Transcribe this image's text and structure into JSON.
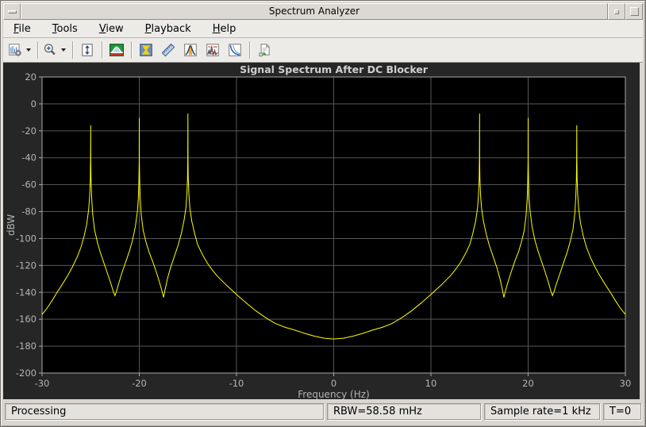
{
  "window": {
    "title": "Spectrum Analyzer"
  },
  "titlebar": {
    "buttons": [
      {
        "name": "window-menu-button",
        "glyph": "dash"
      },
      {
        "name": "minimize-button",
        "glyph": "small-square"
      },
      {
        "name": "maximize-button",
        "glyph": "square"
      }
    ]
  },
  "menubar": {
    "items": [
      {
        "label": "File",
        "mnemonic": "F"
      },
      {
        "label": "Tools",
        "mnemonic": "T"
      },
      {
        "label": "View",
        "mnemonic": "V"
      },
      {
        "label": "Playback",
        "mnemonic": "P"
      },
      {
        "label": "Help",
        "mnemonic": "H"
      }
    ]
  },
  "toolbar": {
    "buttons": [
      {
        "name": "spectrum-settings-button",
        "icon": "settings-chart-icon",
        "dropdown": true
      },
      {
        "name": "zoom-button",
        "icon": "zoom-in-icon",
        "dropdown": true
      },
      {
        "name": "fit-to-view-button",
        "icon": "fit-view-icon",
        "dropdown": false
      },
      {
        "name": "spectrum-spectrogram-button",
        "icon": "spectrum-icon",
        "dropdown": false
      },
      {
        "name": "spectral-mask-button",
        "icon": "spectral-mask-icon",
        "dropdown": false
      },
      {
        "name": "measurements-button",
        "icon": "ruler-icon",
        "dropdown": false
      },
      {
        "name": "peak-finder-button",
        "icon": "peak-finder-icon",
        "dropdown": false
      },
      {
        "name": "distortion-measurements-button",
        "icon": "distortion-icon",
        "dropdown": false
      },
      {
        "name": "ccdf-measurements-button",
        "icon": "ccdf-icon",
        "dropdown": false
      },
      {
        "name": "generate-script-button",
        "icon": "script-icon",
        "dropdown": false
      }
    ],
    "separators_after": [
      0,
      1,
      2,
      3,
      8
    ]
  },
  "statusbar": {
    "processing": "Processing",
    "rbw": "RBW=58.58 mHz",
    "sample_rate": "Sample rate=1 kHz",
    "time": "T=0"
  },
  "chart_data": {
    "type": "line",
    "title": "Signal Spectrum After DC Blocker",
    "xlabel": "Frequency (Hz)",
    "ylabel": "dBW",
    "xlim": [
      -30,
      30
    ],
    "ylim": [
      -200,
      20
    ],
    "xticks": [
      -30,
      -20,
      -10,
      0,
      10,
      20,
      30
    ],
    "yticks": [
      20,
      0,
      -20,
      -40,
      -60,
      -80,
      -100,
      -120,
      -140,
      -160,
      -180,
      -200
    ],
    "grid": true,
    "legend": "none",
    "colors": {
      "panel_bg": "#262626",
      "plot_bg": "#000000",
      "grid": "#565656",
      "axis": "#a8a8a8",
      "tick_label": "#b4b4b4",
      "title": "#cfcfcf",
      "line": "#ffff00"
    },
    "peaks": [
      {
        "freq": -25,
        "dBW": -15.8
      },
      {
        "freq": -20,
        "dBW": -10.4
      },
      {
        "freq": -15,
        "dBW": -7.2
      },
      {
        "freq": 15,
        "dBW": -7.2
      },
      {
        "freq": 20,
        "dBW": -10.4
      },
      {
        "freq": 25,
        "dBW": -15.8
      }
    ],
    "series": [
      {
        "name": "spectrum",
        "points": [
          [
            -30,
            -156.5
          ],
          [
            -29.5,
            -152
          ],
          [
            -29,
            -146.5
          ],
          [
            -28.5,
            -140.5
          ],
          [
            -28,
            -135
          ],
          [
            -27.4,
            -128
          ],
          [
            -26.9,
            -121.5
          ],
          [
            -26.4,
            -114
          ],
          [
            -26,
            -106.5
          ],
          [
            -25.7,
            -99
          ],
          [
            -25.4,
            -89
          ],
          [
            -25.2,
            -78
          ],
          [
            -25.1,
            -68
          ],
          [
            -25.04,
            -56
          ],
          [
            -25.01,
            -42
          ],
          [
            -25,
            -15.8
          ],
          [
            -24.99,
            -42
          ],
          [
            -24.96,
            -56
          ],
          [
            -24.9,
            -69.5
          ],
          [
            -24.8,
            -81.5
          ],
          [
            -24.6,
            -93.5
          ],
          [
            -24.3,
            -103
          ],
          [
            -24,
            -110.5
          ],
          [
            -23.6,
            -119
          ],
          [
            -23.2,
            -127.5
          ],
          [
            -22.9,
            -134
          ],
          [
            -22.65,
            -139.8
          ],
          [
            -22.5,
            -142.5
          ],
          [
            -22.35,
            -139.5
          ],
          [
            -22.1,
            -133
          ],
          [
            -21.8,
            -126
          ],
          [
            -21.4,
            -117.5
          ],
          [
            -21,
            -109
          ],
          [
            -20.7,
            -101.5
          ],
          [
            -20.4,
            -91
          ],
          [
            -20.2,
            -80
          ],
          [
            -20.1,
            -70
          ],
          [
            -20.04,
            -57
          ],
          [
            -20.01,
            -43
          ],
          [
            -20,
            -10.4
          ],
          [
            -19.99,
            -43
          ],
          [
            -19.96,
            -57
          ],
          [
            -19.9,
            -70
          ],
          [
            -19.8,
            -82
          ],
          [
            -19.6,
            -94
          ],
          [
            -19.3,
            -103
          ],
          [
            -19,
            -110
          ],
          [
            -18.6,
            -117.5
          ],
          [
            -18.2,
            -126
          ],
          [
            -17.9,
            -133
          ],
          [
            -17.65,
            -139.5
          ],
          [
            -17.5,
            -143.8
          ],
          [
            -17.35,
            -138
          ],
          [
            -17.1,
            -130
          ],
          [
            -16.8,
            -122
          ],
          [
            -16.4,
            -113.5
          ],
          [
            -16,
            -105
          ],
          [
            -15.7,
            -97
          ],
          [
            -15.4,
            -87
          ],
          [
            -15.2,
            -77
          ],
          [
            -15.1,
            -67
          ],
          [
            -15.04,
            -55
          ],
          [
            -15.01,
            -41
          ],
          [
            -15,
            -7.2
          ],
          [
            -14.99,
            -41
          ],
          [
            -14.96,
            -55
          ],
          [
            -14.9,
            -67
          ],
          [
            -14.8,
            -77
          ],
          [
            -14.6,
            -87
          ],
          [
            -14.3,
            -96.5
          ],
          [
            -14,
            -104.5
          ],
          [
            -13.5,
            -112
          ],
          [
            -13,
            -118.3
          ],
          [
            -12.5,
            -123.4
          ],
          [
            -12,
            -127.8
          ],
          [
            -11,
            -135
          ],
          [
            -10,
            -141.6
          ],
          [
            -9,
            -147.9
          ],
          [
            -8,
            -153.8
          ],
          [
            -7,
            -158.9
          ],
          [
            -6,
            -163.2
          ],
          [
            -5,
            -166
          ],
          [
            -4,
            -168.1
          ],
          [
            -3,
            -170.5
          ],
          [
            -2,
            -172.6
          ],
          [
            -1,
            -174.1
          ],
          [
            0,
            -174.7
          ],
          [
            1,
            -174.1
          ],
          [
            2,
            -172.6
          ],
          [
            3,
            -170.5
          ],
          [
            4,
            -168.1
          ],
          [
            5,
            -166
          ],
          [
            6,
            -163.2
          ],
          [
            7,
            -158.9
          ],
          [
            8,
            -153.8
          ],
          [
            9,
            -147.9
          ],
          [
            10,
            -141.6
          ],
          [
            11,
            -135
          ],
          [
            12,
            -127.8
          ],
          [
            12.5,
            -123.4
          ],
          [
            13,
            -118.3
          ],
          [
            13.5,
            -112
          ],
          [
            14,
            -104.5
          ],
          [
            14.3,
            -96.5
          ],
          [
            14.6,
            -87
          ],
          [
            14.8,
            -77
          ],
          [
            14.9,
            -67
          ],
          [
            14.96,
            -55
          ],
          [
            14.99,
            -41
          ],
          [
            15,
            -7.2
          ],
          [
            15.01,
            -41
          ],
          [
            15.04,
            -55
          ],
          [
            15.1,
            -67
          ],
          [
            15.2,
            -77
          ],
          [
            15.4,
            -87
          ],
          [
            15.7,
            -97
          ],
          [
            16,
            -105
          ],
          [
            16.4,
            -113.5
          ],
          [
            16.8,
            -122
          ],
          [
            17.1,
            -130
          ],
          [
            17.35,
            -138
          ],
          [
            17.5,
            -143.8
          ],
          [
            17.65,
            -139.5
          ],
          [
            17.9,
            -133
          ],
          [
            18.2,
            -126
          ],
          [
            18.6,
            -117.5
          ],
          [
            19,
            -110
          ],
          [
            19.3,
            -103
          ],
          [
            19.6,
            -94
          ],
          [
            19.8,
            -82
          ],
          [
            19.9,
            -70
          ],
          [
            19.96,
            -57
          ],
          [
            19.99,
            -43
          ],
          [
            20,
            -10.4
          ],
          [
            20.01,
            -43
          ],
          [
            20.04,
            -57
          ],
          [
            20.1,
            -70
          ],
          [
            20.2,
            -80
          ],
          [
            20.4,
            -91
          ],
          [
            20.7,
            -101.5
          ],
          [
            21,
            -109
          ],
          [
            21.4,
            -117.5
          ],
          [
            21.8,
            -126
          ],
          [
            22.1,
            -133
          ],
          [
            22.35,
            -139.5
          ],
          [
            22.5,
            -142.5
          ],
          [
            22.65,
            -139.8
          ],
          [
            22.9,
            -134
          ],
          [
            23.2,
            -127.5
          ],
          [
            23.6,
            -119
          ],
          [
            24,
            -110.5
          ],
          [
            24.3,
            -103
          ],
          [
            24.6,
            -93.5
          ],
          [
            24.8,
            -81.5
          ],
          [
            24.9,
            -69.5
          ],
          [
            24.96,
            -56
          ],
          [
            24.99,
            -42
          ],
          [
            25,
            -15.8
          ],
          [
            25.01,
            -42
          ],
          [
            25.04,
            -56
          ],
          [
            25.1,
            -68
          ],
          [
            25.2,
            -78
          ],
          [
            25.4,
            -89
          ],
          [
            25.7,
            -99
          ],
          [
            26,
            -106.5
          ],
          [
            26.4,
            -114
          ],
          [
            26.9,
            -121.5
          ],
          [
            27.4,
            -128
          ],
          [
            28,
            -135
          ],
          [
            28.5,
            -140.5
          ],
          [
            29,
            -146.5
          ],
          [
            29.5,
            -152
          ],
          [
            30,
            -156.5
          ]
        ]
      }
    ]
  }
}
